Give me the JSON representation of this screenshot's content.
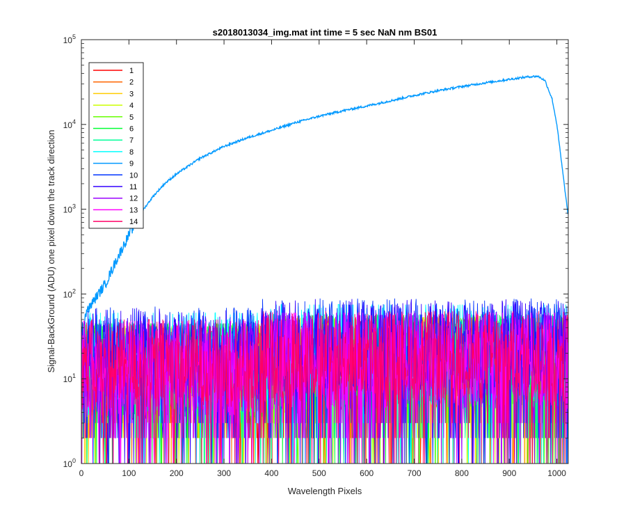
{
  "chart_data": {
    "type": "line",
    "title": "s2018013034_img.mat int time = 5 sec  NaN nm BS01",
    "xlabel": "Wavelength Pixels",
    "ylabel": "Signal-BackGround (ADU) one pixel down the track direction",
    "xlim": [
      0,
      1024
    ],
    "ylim": [
      1,
      100000
    ],
    "yscale": "log",
    "grid": false,
    "legend_position": "top-left",
    "x_ticks": [
      "0",
      "100",
      "200",
      "300",
      "400",
      "500",
      "600",
      "700",
      "800",
      "900",
      "1000"
    ],
    "y_ticks": [
      {
        "base": "10",
        "exp": "0"
      },
      {
        "base": "10",
        "exp": "1"
      },
      {
        "base": "10",
        "exp": "2"
      },
      {
        "base": "10",
        "exp": "3"
      },
      {
        "base": "10",
        "exp": "4"
      },
      {
        "base": "10",
        "exp": "5"
      }
    ],
    "series": [
      {
        "name": "1",
        "color": "#ff0000",
        "noise": {
          "base": 12,
          "spread": 0.6,
          "max": 40
        }
      },
      {
        "name": "2",
        "color": "#ff6600",
        "noise": {
          "base": 12,
          "spread": 0.6,
          "max": 40
        }
      },
      {
        "name": "3",
        "color": "#ffcc00",
        "noise": {
          "base": 13,
          "spread": 0.6,
          "max": 42
        }
      },
      {
        "name": "4",
        "color": "#ccff00",
        "noise": {
          "base": 13,
          "spread": 0.6,
          "max": 42
        }
      },
      {
        "name": "5",
        "color": "#66ff00",
        "noise": {
          "base": 13,
          "spread": 0.6,
          "max": 44
        }
      },
      {
        "name": "6",
        "color": "#00ff33",
        "noise": {
          "base": 14,
          "spread": 0.6,
          "max": 45
        }
      },
      {
        "name": "7",
        "color": "#00ff99",
        "noise": {
          "base": 14,
          "spread": 0.6,
          "max": 46
        }
      },
      {
        "name": "8",
        "color": "#00ffff",
        "noise": {
          "base": 16,
          "spread": 0.65,
          "max": 60
        }
      },
      {
        "name": "9",
        "color": "#0099ff",
        "points": [
          [
            0,
            25
          ],
          [
            10,
            60
          ],
          [
            30,
            90
          ],
          [
            50,
            130
          ],
          [
            75,
            260
          ],
          [
            100,
            500
          ],
          [
            125,
            900
          ],
          [
            150,
            1400
          ],
          [
            175,
            2000
          ],
          [
            200,
            2600
          ],
          [
            250,
            4000
          ],
          [
            300,
            5500
          ],
          [
            350,
            7000
          ],
          [
            400,
            8500
          ],
          [
            450,
            10500
          ],
          [
            500,
            12500
          ],
          [
            550,
            14500
          ],
          [
            600,
            16500
          ],
          [
            650,
            19000
          ],
          [
            700,
            22000
          ],
          [
            750,
            25000
          ],
          [
            800,
            28000
          ],
          [
            850,
            31000
          ],
          [
            900,
            34000
          ],
          [
            940,
            36500
          ],
          [
            960,
            37000
          ],
          [
            975,
            33000
          ],
          [
            990,
            20000
          ],
          [
            1000,
            10000
          ],
          [
            1010,
            3500
          ],
          [
            1023,
            900
          ]
        ]
      },
      {
        "name": "10",
        "color": "#0033ff",
        "noise": {
          "base": 20,
          "spread": 0.55,
          "max": 100
        }
      },
      {
        "name": "11",
        "color": "#3300ff",
        "noise": {
          "base": 20,
          "spread": 0.55,
          "max": 100
        }
      },
      {
        "name": "12",
        "color": "#9900ff",
        "noise": {
          "base": 14,
          "spread": 0.6,
          "max": 45
        }
      },
      {
        "name": "13",
        "color": "#ff00ff",
        "noise": {
          "base": 14,
          "spread": 0.6,
          "max": 48
        }
      },
      {
        "name": "14",
        "color": "#ff0066",
        "noise": {
          "base": 15,
          "spread": 0.55,
          "max": 50
        }
      }
    ]
  }
}
